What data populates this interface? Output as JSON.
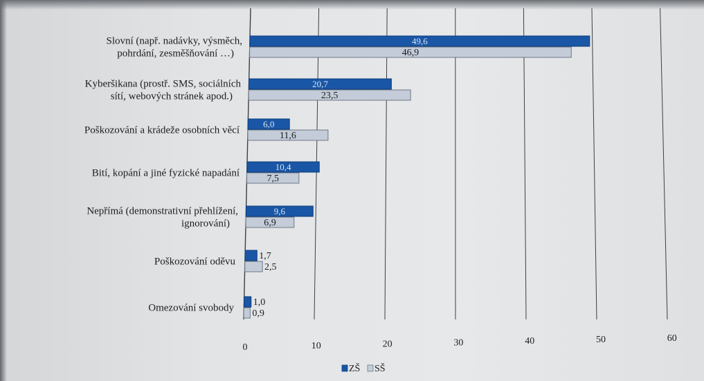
{
  "chart_data": {
    "type": "bar",
    "orientation": "horizontal",
    "categories": [
      [
        "Slovní (např. nadávky, výsměch,",
        "pohrdání, zesměšňování …)"
      ],
      [
        "Kyberšikana (prostř. SMS, sociálních",
        "sítí, webových stránek apod.)"
      ],
      [
        "Poškozování a krádeže osobních věcí"
      ],
      [
        "Bití, kopání a jiné fyzické napadání"
      ],
      [
        "Nepřímá (demonstrativní přehlížení,",
        "ignorování)"
      ],
      [
        "Poškozování oděvu"
      ],
      [
        "Omezování svobody"
      ]
    ],
    "series": [
      {
        "name": "ZŠ",
        "color": "#1a56a6",
        "values": [
          49.6,
          20.7,
          6.0,
          10.4,
          9.6,
          1.7,
          1.0
        ],
        "labels": [
          "49,6",
          "20,7",
          "6,0",
          "10,4",
          "9,6",
          "1,7",
          "1,0"
        ]
      },
      {
        "name": "SŠ",
        "color": "#c3ccd8",
        "values": [
          46.9,
          23.5,
          11.6,
          7.5,
          6.9,
          2.5,
          0.9
        ],
        "labels": [
          "46,9",
          "23,5",
          "11,6",
          "7,5",
          "6,9",
          "2,5",
          "0,9"
        ]
      }
    ],
    "xlim": [
      0,
      60
    ],
    "xticks": [
      0,
      10,
      20,
      30,
      40,
      50,
      60
    ],
    "xtick_labels": [
      "0",
      "10",
      "20",
      "30",
      "40",
      "50",
      "60"
    ],
    "grid": true,
    "legend_position": "bottom-center"
  }
}
